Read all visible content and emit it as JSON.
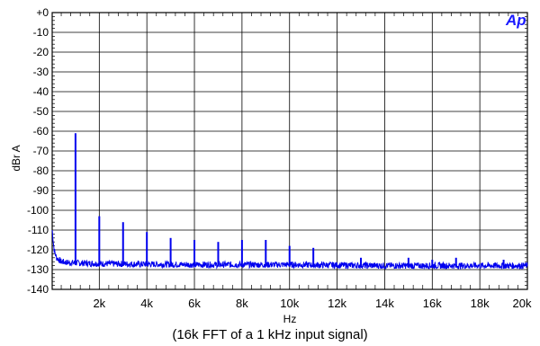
{
  "chart_data": {
    "type": "line",
    "xlabel": "Hz",
    "ylabel": "dBr A",
    "caption": "(16k FFT of a 1 kHz input signal)",
    "logo_text": "Ap",
    "xlim": [
      20,
      20000
    ],
    "ylim": [
      -140,
      0
    ],
    "x_ticks": [
      2000,
      4000,
      6000,
      8000,
      10000,
      12000,
      14000,
      16000,
      18000,
      20000
    ],
    "x_tick_labels": [
      "2k",
      "4k",
      "6k",
      "8k",
      "10k",
      "12k",
      "14k",
      "16k",
      "18k",
      "20k"
    ],
    "y_ticks": [
      0,
      -10,
      -20,
      -30,
      -40,
      -50,
      -60,
      -70,
      -80,
      -90,
      -100,
      -110,
      -120,
      -130,
      -140
    ],
    "y_tick_labels": [
      "+0",
      "-10",
      "-20",
      "-30",
      "-40",
      "-50",
      "-60",
      "-70",
      "-80",
      "-90",
      "-100",
      "-110",
      "-120",
      "-130",
      "-140"
    ],
    "grid": true,
    "series_color": "#0000ee",
    "noise_floor": [
      [
        20,
        -110
      ],
      [
        100,
        -120
      ],
      [
        200,
        -124
      ],
      [
        400,
        -126
      ],
      [
        700,
        -126.5
      ],
      [
        2000,
        -127
      ],
      [
        6000,
        -127.5
      ],
      [
        10000,
        -127.5
      ],
      [
        14000,
        -128
      ],
      [
        20000,
        -128
      ]
    ],
    "peaks": [
      {
        "x": 1000,
        "y": -61
      },
      {
        "x": 2000,
        "y": -103
      },
      {
        "x": 3000,
        "y": -106
      },
      {
        "x": 4000,
        "y": -111
      },
      {
        "x": 5000,
        "y": -114
      },
      {
        "x": 6000,
        "y": -115
      },
      {
        "x": 7000,
        "y": -116
      },
      {
        "x": 8000,
        "y": -115
      },
      {
        "x": 9000,
        "y": -115
      },
      {
        "x": 10000,
        "y": -118
      },
      {
        "x": 11000,
        "y": -119
      },
      {
        "x": 13000,
        "y": -124
      },
      {
        "x": 15000,
        "y": -124
      },
      {
        "x": 16000,
        "y": -125
      },
      {
        "x": 17000,
        "y": -124
      },
      {
        "x": 19000,
        "y": -125
      }
    ]
  }
}
